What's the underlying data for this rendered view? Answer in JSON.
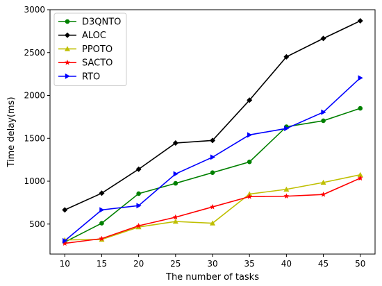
{
  "chart_data": {
    "type": "line",
    "title": "",
    "xlabel": "The number of tasks",
    "ylabel": "Time delay(ms)",
    "x": [
      10,
      15,
      20,
      25,
      30,
      35,
      40,
      45,
      50
    ],
    "xlim": [
      8,
      52
    ],
    "ylim": [
      150,
      3000
    ],
    "xticks": [
      10,
      15,
      20,
      25,
      30,
      35,
      40,
      45,
      50
    ],
    "yticks": [
      500,
      1000,
      1500,
      2000,
      2500,
      3000
    ],
    "grid": false,
    "legend_position": "top-left",
    "series": [
      {
        "name": "D3QNTO",
        "color": "#008000",
        "marker": "circle",
        "values": [
          290,
          510,
          855,
          975,
          1100,
          1225,
          1635,
          1705,
          1850
        ]
      },
      {
        "name": "ALOC",
        "color": "#000000",
        "marker": "diamond",
        "values": [
          665,
          860,
          1140,
          1445,
          1475,
          1945,
          2450,
          2665,
          2870
        ]
      },
      {
        "name": "PPOTO",
        "color": "#bfbf00",
        "marker": "triangle-up",
        "values": [
          315,
          320,
          465,
          530,
          510,
          850,
          905,
          985,
          1075
        ]
      },
      {
        "name": "SACTO",
        "color": "#ff0000",
        "marker": "star",
        "values": [
          275,
          330,
          480,
          580,
          700,
          820,
          825,
          845,
          1035
        ]
      },
      {
        "name": "RTO",
        "color": "#0000ff",
        "marker": "triangle-right",
        "values": [
          305,
          665,
          715,
          1085,
          1280,
          1540,
          1615,
          1805,
          2205
        ]
      }
    ]
  }
}
